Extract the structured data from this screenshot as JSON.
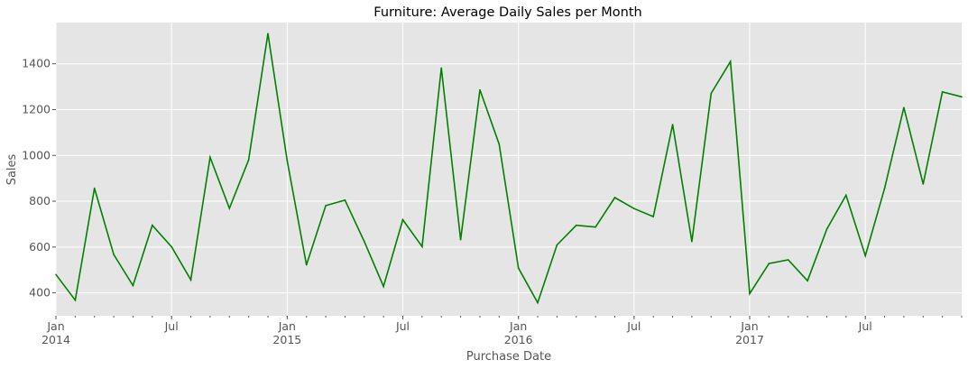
{
  "chart_data": {
    "type": "line",
    "title": "Furniture: Average Daily Sales per Month",
    "xlabel": "Purchase Date",
    "ylabel": "Sales",
    "x_range": [
      "2014-01",
      "2017-12"
    ],
    "ylim": [
      300,
      1580
    ],
    "y_ticks": [
      400,
      600,
      800,
      1000,
      1200,
      1400
    ],
    "x_major_ticks": [
      {
        "date": "2014-01",
        "label": "Jan",
        "year_label": "2014"
      },
      {
        "date": "2014-07",
        "label": "Jul",
        "year_label": ""
      },
      {
        "date": "2015-01",
        "label": "Jan",
        "year_label": "2015"
      },
      {
        "date": "2015-07",
        "label": "Jul",
        "year_label": ""
      },
      {
        "date": "2016-01",
        "label": "Jan",
        "year_label": "2016"
      },
      {
        "date": "2016-07",
        "label": "Jul",
        "year_label": ""
      },
      {
        "date": "2017-01",
        "label": "Jan",
        "year_label": "2017"
      },
      {
        "date": "2017-07",
        "label": "Jul",
        "year_label": ""
      }
    ],
    "grid": true,
    "background": "#e5e5e5",
    "line_color": "#008000",
    "series": [
      {
        "x": [
          "2014-01",
          "2014-02",
          "2014-03",
          "2014-04",
          "2014-05",
          "2014-06",
          "2014-07",
          "2014-08",
          "2014-09",
          "2014-10",
          "2014-11",
          "2014-12",
          "2015-01",
          "2015-02",
          "2015-03",
          "2015-04",
          "2015-05",
          "2015-06",
          "2015-07",
          "2015-08",
          "2015-09",
          "2015-10",
          "2015-11",
          "2015-12",
          "2016-01",
          "2016-02",
          "2016-03",
          "2016-04",
          "2016-05",
          "2016-06",
          "2016-07",
          "2016-08",
          "2016-09",
          "2016-10",
          "2016-11",
          "2016-12",
          "2017-01",
          "2017-02",
          "2017-03",
          "2017-04",
          "2017-05",
          "2017-06",
          "2017-07",
          "2017-08",
          "2017-09",
          "2017-10",
          "2017-11",
          "2017-12"
        ],
        "values": [
          480,
          368,
          857,
          567,
          432,
          695,
          601,
          457,
          992,
          769,
          980,
          1532,
          978,
          522,
          781,
          805,
          624,
          428,
          719,
          602,
          1382,
          632,
          1286,
          1049,
          508,
          357,
          609,
          695,
          687,
          816,
          768,
          733,
          1135,
          624,
          1271,
          1410,
          397,
          528,
          544,
          453,
          678,
          826,
          562,
          857,
          1209,
          875,
          1277,
          1256
        ]
      }
    ]
  }
}
